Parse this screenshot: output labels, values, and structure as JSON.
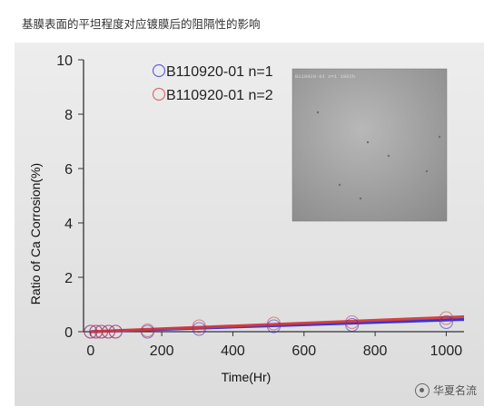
{
  "caption": "基膜表面的平坦程度对应镀膜后的阻隔性的影响",
  "watermark_text": "华夏名流",
  "inset_label": "B110920-01 n=1 1002h",
  "colors": {
    "series1": "#2b2bd6",
    "series2": "#d43a3a",
    "panel_bg": "#e4e4e4"
  },
  "chart_data": {
    "type": "scatter",
    "title": "",
    "xlabel": "Time(Hr)",
    "ylabel": "Ratio of Ca Corrosion(%)",
    "xlim": [
      -20,
      1050
    ],
    "ylim": [
      0,
      10
    ],
    "xticks": [
      0,
      200,
      400,
      600,
      800,
      1000
    ],
    "yticks": [
      0,
      2,
      4,
      6,
      8,
      10
    ],
    "grid": false,
    "legend_position": "top-center",
    "series": [
      {
        "name": "B110920-01  n=1",
        "color": "#2b2bd6",
        "x": [
          0,
          15,
          30,
          50,
          70,
          160,
          305,
          515,
          735,
          1000
        ],
        "y": [
          0.0,
          0.0,
          0.0,
          0.0,
          0.0,
          0.0,
          0.1,
          0.2,
          0.25,
          0.35
        ],
        "trend": [
          [
            0,
            0.0
          ],
          [
            1050,
            0.45
          ]
        ]
      },
      {
        "name": "B110920-01  n=2",
        "color": "#d43a3a",
        "x": [
          0,
          15,
          30,
          50,
          70,
          160,
          305,
          515,
          735,
          1000
        ],
        "y": [
          0.0,
          0.0,
          0.0,
          0.0,
          0.0,
          0.05,
          0.2,
          0.3,
          0.35,
          0.5
        ],
        "trend": [
          [
            0,
            0.0
          ],
          [
            1050,
            0.55
          ]
        ]
      }
    ]
  }
}
